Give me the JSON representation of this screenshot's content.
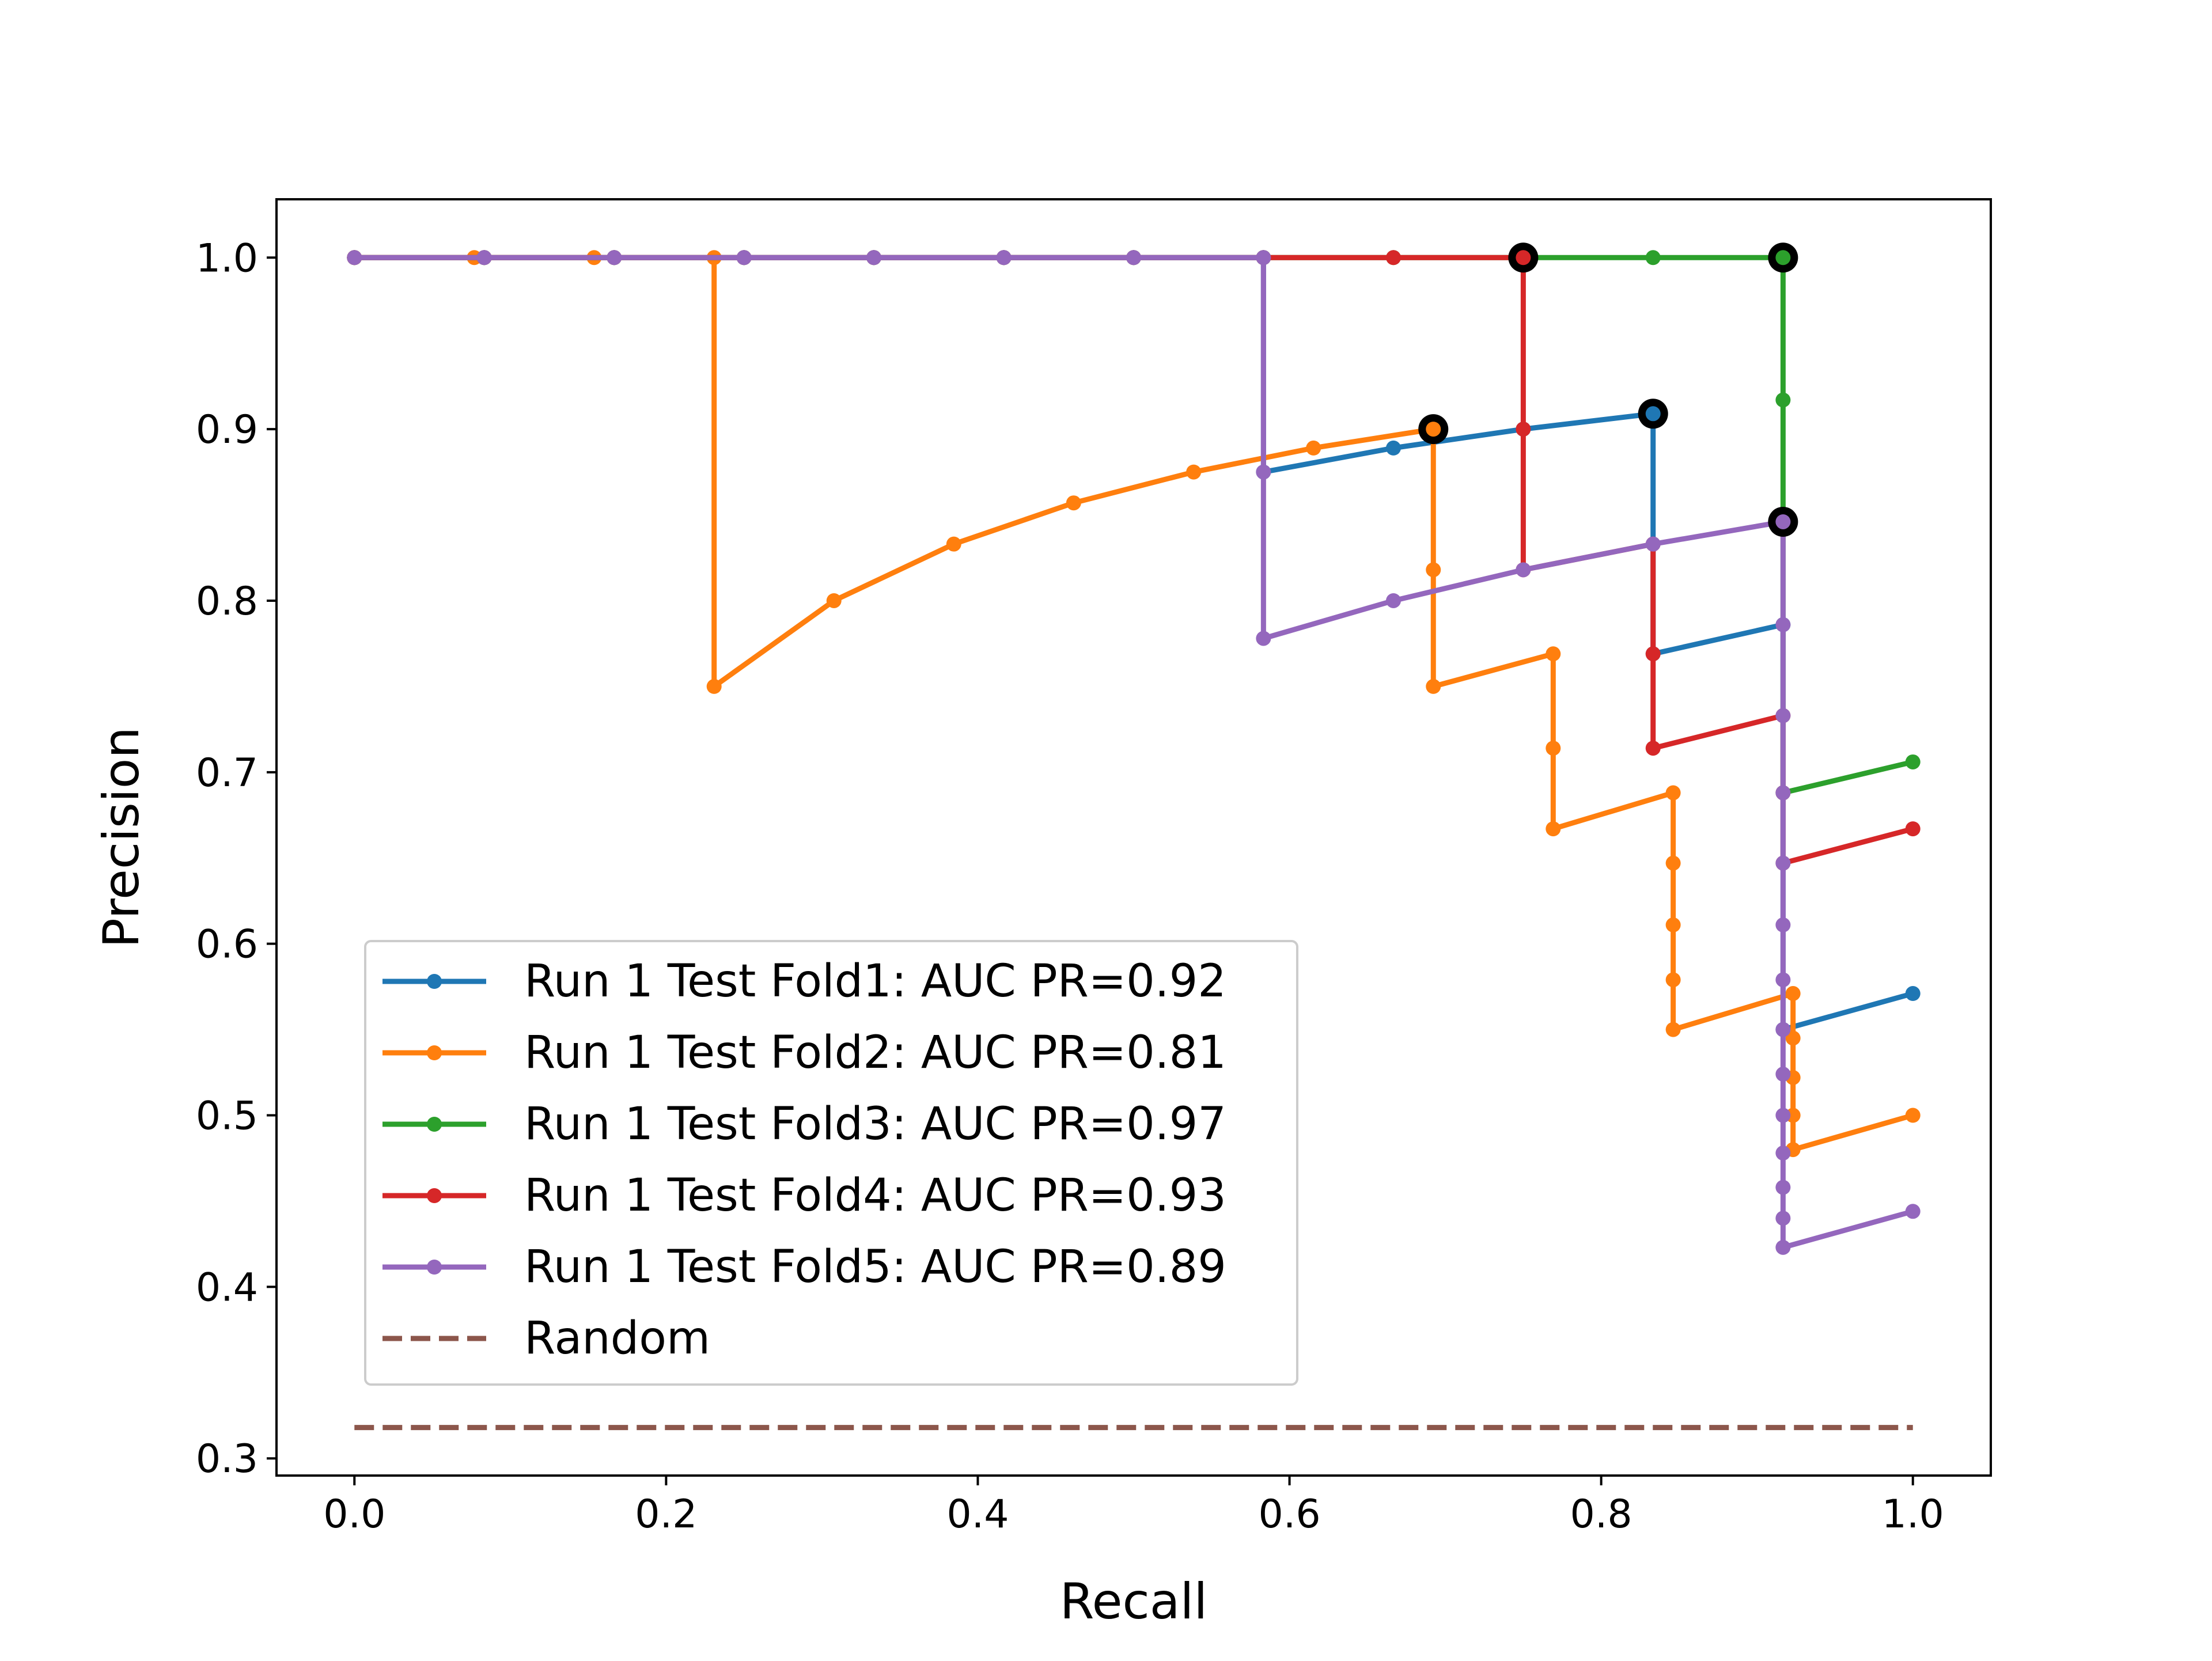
{
  "chart_data": {
    "type": "line",
    "title": "",
    "xlabel": "Recall",
    "ylabel": "Precision",
    "xlim": [
      -0.05,
      1.05
    ],
    "ylim": [
      0.29,
      1.034
    ],
    "xticks": [
      0.0,
      0.2,
      0.4,
      0.6,
      0.8,
      1.0
    ],
    "xtick_labels": [
      "0.0",
      "0.2",
      "0.4",
      "0.6",
      "0.8",
      "1.0"
    ],
    "yticks": [
      0.3,
      0.4,
      0.5,
      0.6,
      0.7,
      0.8,
      0.9,
      1.0
    ],
    "ytick_labels": [
      "0.3",
      "0.4",
      "0.5",
      "0.6",
      "0.7",
      "0.8",
      "0.9",
      "1.0"
    ],
    "grid": false,
    "legend_position": "lower-left",
    "series": [
      {
        "name": "Run 1 Test Fold1: AUC PR=0.92",
        "color": "#1f77b4",
        "x": [
          0.0,
          0.0833,
          0.1667,
          0.25,
          0.3333,
          0.4167,
          0.5,
          0.5833,
          0.5833,
          0.6667,
          0.75,
          0.8333,
          0.8333,
          0.9167,
          0.9167,
          1.0
        ],
        "y": [
          1.0,
          1.0,
          1.0,
          1.0,
          1.0,
          1.0,
          1.0,
          1.0,
          0.875,
          0.889,
          0.9,
          0.909,
          0.769,
          0.786,
          0.55,
          0.571
        ]
      },
      {
        "name": "Run 1 Test Fold2: AUC PR=0.81",
        "color": "#ff7f0e",
        "x": [
          0.0,
          0.0769,
          0.1538,
          0.2308,
          0.2308,
          0.3077,
          0.3846,
          0.4615,
          0.5385,
          0.6154,
          0.6923,
          0.6923,
          0.6923,
          0.7692,
          0.7692,
          0.7692,
          0.8462,
          0.8462,
          0.8462,
          0.8462,
          0.8462,
          0.9231,
          0.9231,
          0.9231,
          0.9231,
          0.9231,
          1.0
        ],
        "y": [
          1.0,
          1.0,
          1.0,
          1.0,
          0.75,
          0.8,
          0.833,
          0.857,
          0.875,
          0.889,
          0.9,
          0.818,
          0.75,
          0.769,
          0.714,
          0.667,
          0.688,
          0.647,
          0.611,
          0.579,
          0.55,
          0.571,
          0.545,
          0.522,
          0.5,
          0.48,
          0.5
        ]
      },
      {
        "name": "Run 1 Test Fold3: AUC PR=0.97",
        "color": "#2ca02c",
        "x": [
          0.0,
          0.0833,
          0.1667,
          0.25,
          0.3333,
          0.4167,
          0.5,
          0.5833,
          0.6667,
          0.75,
          0.8333,
          0.9167,
          0.9167,
          0.9167,
          0.9167,
          1.0
        ],
        "y": [
          1.0,
          1.0,
          1.0,
          1.0,
          1.0,
          1.0,
          1.0,
          1.0,
          1.0,
          1.0,
          1.0,
          1.0,
          0.917,
          0.846,
          0.688,
          0.706
        ]
      },
      {
        "name": "Run 1 Test Fold4: AUC PR=0.93",
        "color": "#d62728",
        "x": [
          0.0,
          0.0833,
          0.1667,
          0.25,
          0.3333,
          0.4167,
          0.5,
          0.5833,
          0.6667,
          0.75,
          0.75,
          0.75,
          0.8333,
          0.8333,
          0.8333,
          0.9167,
          0.9167,
          0.9167,
          1.0
        ],
        "y": [
          1.0,
          1.0,
          1.0,
          1.0,
          1.0,
          1.0,
          1.0,
          1.0,
          1.0,
          1.0,
          0.9,
          0.818,
          0.833,
          0.769,
          0.714,
          0.733,
          0.688,
          0.647,
          0.667
        ]
      },
      {
        "name": "Run 1 Test Fold5: AUC PR=0.89",
        "color": "#9467bd",
        "x": [
          0.0,
          0.0833,
          0.1667,
          0.25,
          0.3333,
          0.4167,
          0.5,
          0.5833,
          0.5833,
          0.5833,
          0.6667,
          0.75,
          0.8333,
          0.9167,
          0.9167,
          0.9167,
          0.9167,
          0.9167,
          0.9167,
          0.9167,
          0.9167,
          0.9167,
          0.9167,
          0.9167,
          0.9167,
          0.9167,
          0.9167,
          1.0
        ],
        "y": [
          1.0,
          1.0,
          1.0,
          1.0,
          1.0,
          1.0,
          1.0,
          1.0,
          0.875,
          0.778,
          0.8,
          0.818,
          0.833,
          0.846,
          0.786,
          0.733,
          0.688,
          0.647,
          0.611,
          0.579,
          0.55,
          0.524,
          0.5,
          0.478,
          0.458,
          0.44,
          0.423,
          0.444
        ]
      }
    ],
    "random_baseline": {
      "name": "Random",
      "color": "#8c564b",
      "x": [
        0.0,
        1.0
      ],
      "y": [
        0.318,
        0.318
      ]
    },
    "highlighted_points": [
      {
        "series": "Run 1 Test Fold1: AUC PR=0.92",
        "x": 0.8333,
        "y": 0.909
      },
      {
        "series": "Run 1 Test Fold2: AUC PR=0.81",
        "x": 0.6923,
        "y": 0.9
      },
      {
        "series": "Run 1 Test Fold3: AUC PR=0.97",
        "x": 0.9167,
        "y": 1.0
      },
      {
        "series": "Run 1 Test Fold4: AUC PR=0.93",
        "x": 0.75,
        "y": 1.0
      },
      {
        "series": "Run 1 Test Fold5: AUC PR=0.89",
        "x": 0.9167,
        "y": 0.846
      }
    ]
  }
}
